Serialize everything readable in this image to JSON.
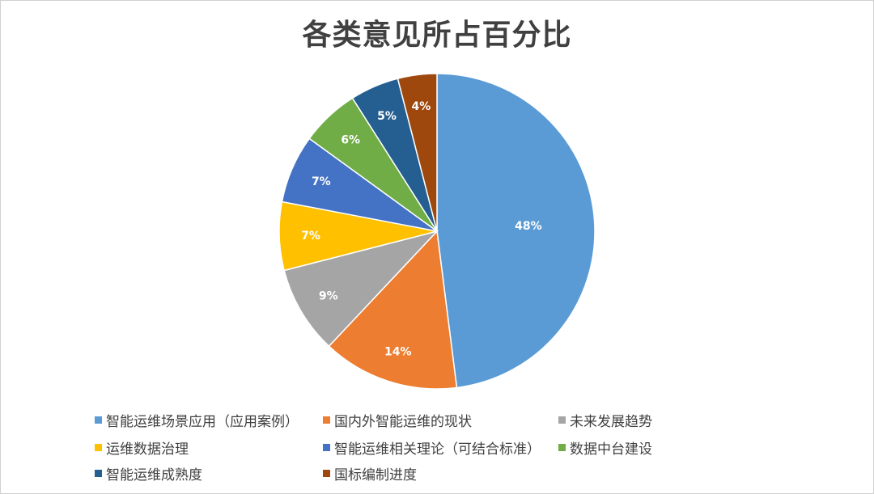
{
  "chart_data": {
    "type": "pie",
    "title": "各类意见所占百分比",
    "slices": [
      {
        "name": "智能运维场景应用（应用案例）",
        "value": 48,
        "label": "48%",
        "color": "#5B9BD5"
      },
      {
        "name": "国内外智能运维的现状",
        "value": 14,
        "label": "14%",
        "color": "#ED7D31"
      },
      {
        "name": "未来发展趋势",
        "value": 9,
        "label": "9%",
        "color": "#A5A5A5"
      },
      {
        "name": "运维数据治理",
        "value": 7,
        "label": "7%",
        "color": "#FFC000"
      },
      {
        "name": "智能运维相关理论（可结合标准）",
        "value": 7,
        "label": "7%",
        "color": "#4472C4"
      },
      {
        "name": "数据中台建设",
        "value": 6,
        "label": "6%",
        "color": "#70AD47"
      },
      {
        "name": "智能运维成熟度",
        "value": 5,
        "label": "5%",
        "color": "#255E91"
      },
      {
        "name": "国标编制进度",
        "value": 4,
        "label": "4%",
        "color": "#9E480E"
      }
    ],
    "legend": "bottom"
  }
}
